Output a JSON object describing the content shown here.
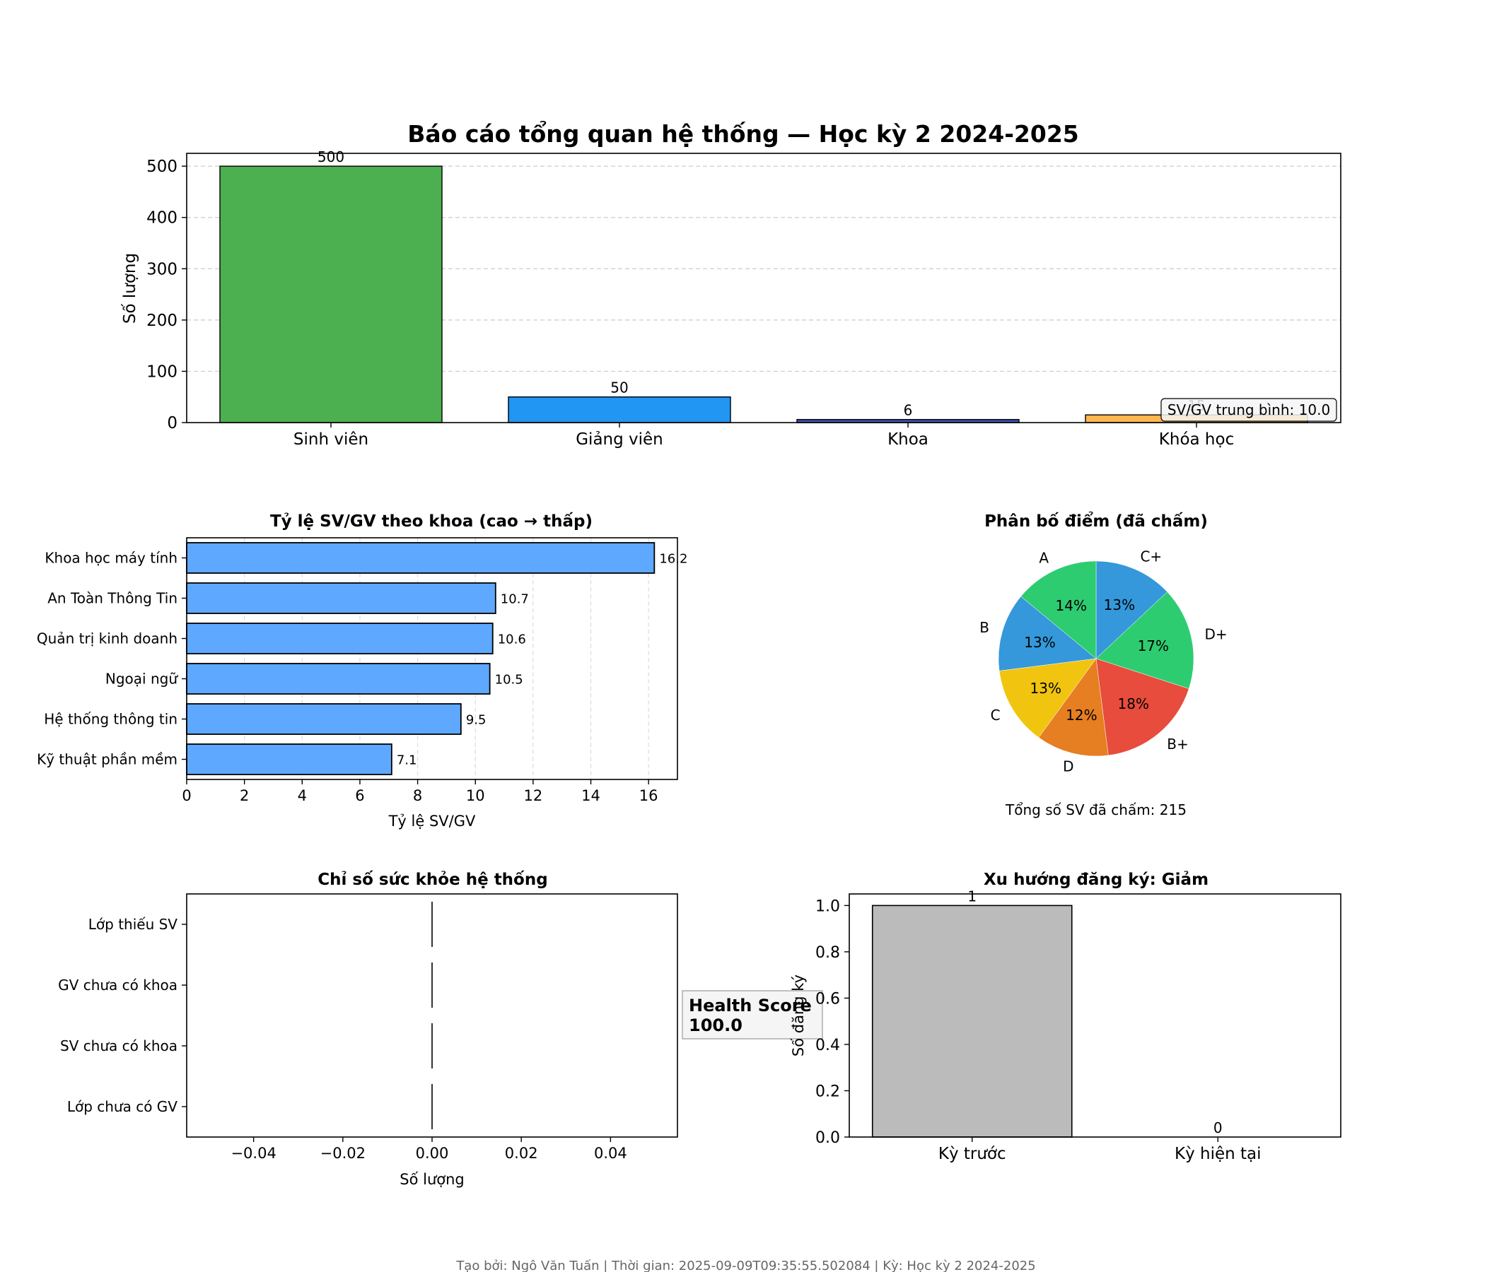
{
  "footer": "Tạo bởi: Ngô Văn Tuấn | Thời gian: 2025-09-09T09:35:55.502084 | Kỳ: Học kỳ 2 2024-2025",
  "colors": {
    "green": "#4caf50",
    "blue": "#2196f3",
    "indigo": "#3f51b5",
    "orange": "#ffb74d",
    "hbar": "#5ea8ff",
    "gray": "#bbbbbb",
    "pie": [
      "#3498db",
      "#2ecc71",
      "#e74c3c",
      "#e67e22",
      "#f1c40f",
      "#3498db",
      "#2ecc71"
    ]
  },
  "chart_data": [
    {
      "type": "bar",
      "title": "Báo cáo tổng quan hệ thống — Học kỳ 2 2024-2025",
      "xlabel": "",
      "ylabel": "Số lượng",
      "categories": [
        "Sinh viên",
        "Giảng viên",
        "Khoa",
        "Khóa học"
      ],
      "values": [
        500,
        50,
        6,
        15
      ],
      "value_labels": [
        "500",
        "50",
        "6",
        "15"
      ],
      "colors": [
        "#4caf50",
        "#2196f3",
        "#3f51b5",
        "#ffb74d"
      ],
      "ylim": [
        0,
        525
      ],
      "yticks": [
        0,
        100,
        200,
        300,
        400,
        500
      ],
      "grid": "y-dashed",
      "annotation": "SV/GV trung bình: 10.0"
    },
    {
      "type": "bar",
      "orientation": "horizontal",
      "title": "Tỷ lệ SV/GV theo khoa (cao → thấp)",
      "xlabel": "Tỷ lệ SV/GV",
      "ylabel": "",
      "categories": [
        "Khoa học máy tính",
        "An Toàn Thông Tin",
        "Quản trị kinh doanh",
        "Ngoại ngữ",
        "Hệ thống thông tin",
        "Kỹ thuật phần mềm"
      ],
      "values": [
        16.2,
        10.7,
        10.6,
        10.5,
        9.5,
        7.1
      ],
      "value_labels": [
        "16.2",
        "10.7",
        "10.6",
        "10.5",
        "9.5",
        "7.1"
      ],
      "xlim": [
        0,
        17
      ],
      "xticks": [
        0,
        2,
        4,
        6,
        8,
        10,
        12,
        14,
        16
      ],
      "grid": "x-dashed"
    },
    {
      "type": "pie",
      "title": "Phân bố điểm (đã chấm)",
      "labels": [
        "C+",
        "D+",
        "B+",
        "D",
        "C",
        "B",
        "A"
      ],
      "values": [
        13,
        17,
        18,
        12,
        13,
        13,
        14
      ],
      "percent_labels": [
        "13%",
        "17%",
        "18%",
        "12%",
        "13%",
        "13%",
        "14%"
      ],
      "start": "top, clockwise",
      "caption": "Tổng số SV đã chấm: 215"
    },
    {
      "type": "bar",
      "orientation": "horizontal",
      "title": "Chỉ số sức khỏe hệ thống",
      "xlabel": "Số lượng",
      "ylabel": "",
      "categories": [
        "Lớp thiếu SV",
        "GV chưa có khoa",
        "SV chưa có khoa",
        "Lớp chưa có GV"
      ],
      "values": [
        0,
        0,
        0,
        0
      ],
      "xlim": [
        -0.055,
        0.055
      ],
      "xticks": [
        -0.04,
        -0.02,
        0.0,
        0.02,
        0.04
      ],
      "xtick_labels": [
        "−0.04",
        "−0.02",
        "0.00",
        "0.02",
        "0.04"
      ],
      "annotation": [
        "Health Score",
        "100.0"
      ]
    },
    {
      "type": "bar",
      "title": "Xu hướng đăng ký: Giảm",
      "xlabel": "",
      "ylabel": "Số đăng ký",
      "categories": [
        "Kỳ trước",
        "Kỳ hiện tại"
      ],
      "values": [
        1,
        0
      ],
      "value_labels": [
        "1",
        "0"
      ],
      "ylim": [
        0,
        1.05
      ],
      "yticks": [
        0.0,
        0.2,
        0.4,
        0.6,
        0.8,
        1.0
      ],
      "ytick_labels": [
        "0.0",
        "0.2",
        "0.4",
        "0.6",
        "0.8",
        "1.0"
      ]
    }
  ]
}
